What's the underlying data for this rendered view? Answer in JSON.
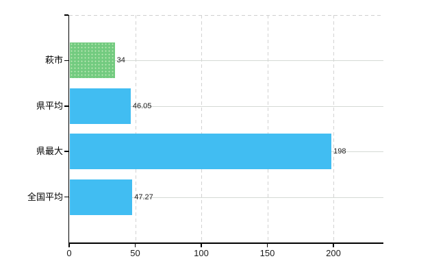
{
  "chart_data": {
    "type": "bar",
    "orientation": "horizontal",
    "title": "",
    "xlabel": "",
    "ylabel": "",
    "categories": [
      "萩市",
      "県平均",
      "県最大",
      "全国平均"
    ],
    "values": [
      34,
      46.05,
      198,
      47.27
    ],
    "value_labels": [
      "34",
      "46.05",
      "198",
      "47.27"
    ],
    "bar_colors": [
      "#73cb80",
      "#41bdf2",
      "#41bdf2",
      "#41bdf2"
    ],
    "x_ticks": [
      0,
      50,
      100,
      150,
      200
    ],
    "x_tick_labels": [
      "0",
      "50",
      "100",
      "150",
      "200"
    ],
    "xlim": [
      0,
      237.8
    ],
    "grid": true,
    "legend": false
  },
  "colors": {
    "bar_green": "#73cb80",
    "bar_blue": "#41bdf2",
    "gridline": "#d2d2d2",
    "axis": "#000000",
    "text": "#1a1a1a",
    "background": "#ffffff"
  }
}
